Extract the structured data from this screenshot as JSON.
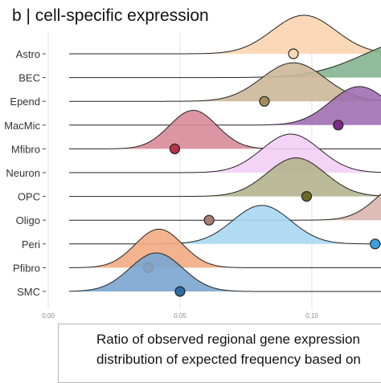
{
  "title": "b | cell-specific expression",
  "chart_data": {
    "type": "ridgeline",
    "title": "b | cell-specific expression",
    "xlabel_lines": [
      "Ratio of observed regional gene expression",
      "distribution of expected frequency based on"
    ],
    "xlim": [
      0.0,
      0.11
    ],
    "xticks": [
      0.0,
      0.05,
      0.1
    ],
    "xtick_labels": [
      "0.00",
      "0.05",
      "0.10"
    ],
    "grid": true,
    "series": [
      {
        "name": "Astro",
        "peak": 0.097,
        "sd": 0.012,
        "point": 0.093,
        "color": "#fbd4b0",
        "point_color": "#fcd7b6"
      },
      {
        "name": "BEC",
        "peak": 0.14,
        "sd": 0.02,
        "point": null,
        "color": "#85b590",
        "point_color": "#85b590"
      },
      {
        "name": "Ependymal_label_short",
        "label": "Epend",
        "peak": 0.093,
        "sd": 0.012,
        "point": 0.082,
        "color": "#cdb899",
        "point_color": "#a38c5c"
      },
      {
        "name": "MacMic",
        "peak": 0.118,
        "sd": 0.011,
        "point": 0.11,
        "color": "#a06fb3",
        "point_color": "#7b2a8c"
      },
      {
        "name": "Mfibro",
        "peak": 0.055,
        "sd": 0.009,
        "point": 0.048,
        "color": "#d78b99",
        "point_color": "#b8334a"
      },
      {
        "name": "Neuron",
        "peak": 0.092,
        "sd": 0.011,
        "point": null,
        "color": "#f3cff5",
        "point_color": "#f3cff5"
      },
      {
        "name": "OPC",
        "peak": 0.094,
        "sd": 0.011,
        "point": 0.098,
        "color": "#b4b48f",
        "point_color": "#6d6a22"
      },
      {
        "name": "Oligo",
        "peak": 0.135,
        "sd": 0.01,
        "point": 0.061,
        "color": "#d9b6ad",
        "point_color": "#a87c77"
      },
      {
        "name": "Peri",
        "peak": 0.081,
        "sd": 0.011,
        "point": 0.124,
        "color": "#a8d7f2",
        "point_color": "#39a2de"
      },
      {
        "name": "Pfibro",
        "peak": 0.042,
        "sd": 0.009,
        "point": 0.038,
        "color": "#f2ab82",
        "point_color": "#eb6e23"
      },
      {
        "name": "SMC",
        "peak": 0.041,
        "sd": 0.01,
        "point": 0.05,
        "color": "#7aa5cf",
        "point_color": "#2e6aa3"
      }
    ]
  }
}
